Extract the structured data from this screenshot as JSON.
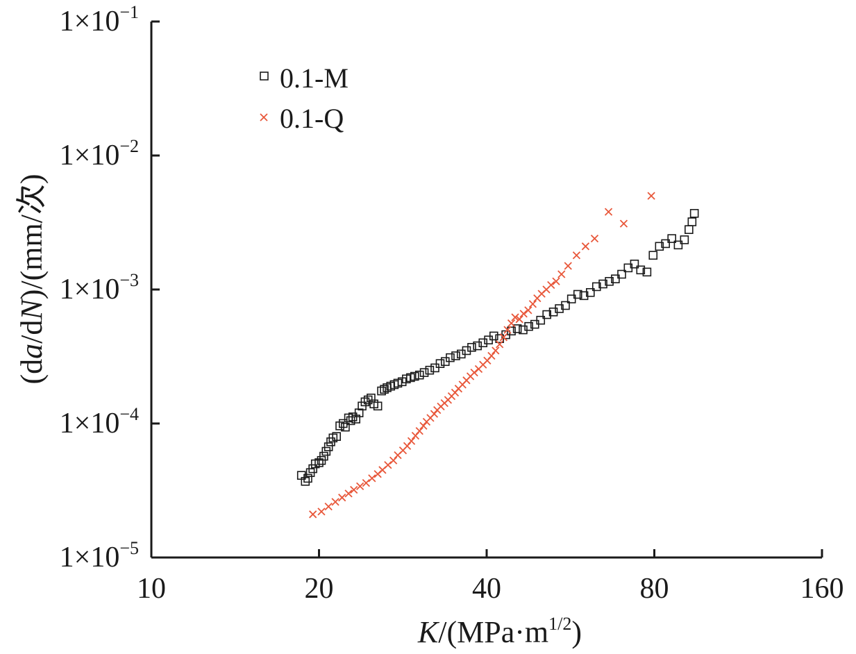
{
  "chart_data": {
    "type": "scatter",
    "title": "",
    "xscale": "log",
    "yscale": "log",
    "xlim": [
      10,
      160
    ],
    "ylim": [
      1e-05,
      0.1
    ],
    "x_ticks": [
      10,
      20,
      40,
      80,
      160
    ],
    "x_tick_labels": [
      "10",
      "20",
      "40",
      "80",
      "160"
    ],
    "y_ticks": [
      1e-05,
      0.0001,
      0.001,
      0.01,
      0.1
    ],
    "y_tick_labels": [
      {
        "base": "1×10",
        "exp": "−5"
      },
      {
        "base": "1×10",
        "exp": "−4"
      },
      {
        "base": "1×10",
        "exp": "−3"
      },
      {
        "base": "1×10",
        "exp": "−2"
      },
      {
        "base": "1×10",
        "exp": "−1"
      }
    ],
    "xlabel": {
      "var": "K",
      "unit_open": "/(MPa·m",
      "unit_sup": "1/2",
      "unit_close": ")"
    },
    "ylabel": {
      "p1": "(d",
      "a": "a",
      "p2": "/d",
      "N": "N",
      "p3": ")/(mm/次)"
    },
    "legend_position": "top-left",
    "series": [
      {
        "name": "0.1-M",
        "marker": "square",
        "color": "#1a1a1a",
        "points": [
          [
            18.6,
            4.1e-05
          ],
          [
            18.9,
            3.7e-05
          ],
          [
            19.1,
            3.9e-05
          ],
          [
            19.3,
            4.3e-05
          ],
          [
            19.5,
            4.6e-05
          ],
          [
            19.7,
            5e-05
          ],
          [
            20.0,
            5.1e-05
          ],
          [
            20.2,
            5.3e-05
          ],
          [
            20.4,
            5.7e-05
          ],
          [
            20.6,
            6.2e-05
          ],
          [
            20.8,
            6.7e-05
          ],
          [
            21.0,
            7.3e-05
          ],
          [
            21.2,
            7.8e-05
          ],
          [
            21.5,
            8e-05
          ],
          [
            21.8,
            9.6e-05
          ],
          [
            22.1,
            0.0001
          ],
          [
            22.3,
            9.4e-05
          ],
          [
            22.6,
            0.00011
          ],
          [
            22.8,
            0.000105
          ],
          [
            23.0,
            0.000112
          ],
          [
            23.3,
            0.000108
          ],
          [
            23.6,
            0.00012
          ],
          [
            23.9,
            0.000135
          ],
          [
            24.2,
            0.000145
          ],
          [
            24.5,
            0.00015
          ],
          [
            24.8,
            0.000155
          ],
          [
            25.1,
            0.00014
          ],
          [
            25.5,
            0.000135
          ],
          [
            25.9,
            0.000175
          ],
          [
            26.2,
            0.00018
          ],
          [
            26.5,
            0.000185
          ],
          [
            26.9,
            0.00019
          ],
          [
            27.3,
            0.000195
          ],
          [
            27.7,
            0.0002
          ],
          [
            28.2,
            0.000205
          ],
          [
            28.7,
            0.000215
          ],
          [
            29.2,
            0.00022
          ],
          [
            29.7,
            0.000225
          ],
          [
            30.3,
            0.00023
          ],
          [
            30.9,
            0.00024
          ],
          [
            31.6,
            0.00025
          ],
          [
            32.3,
            0.00026
          ],
          [
            33.0,
            0.00028
          ],
          [
            33.7,
            0.00029
          ],
          [
            34.4,
            0.00031
          ],
          [
            35.2,
            0.00032
          ],
          [
            36.0,
            0.00033
          ],
          [
            36.8,
            0.00035
          ],
          [
            37.6,
            0.00037
          ],
          [
            38.5,
            0.00038
          ],
          [
            39.4,
            0.0004
          ],
          [
            40.3,
            0.00042
          ],
          [
            41.2,
            0.00045
          ],
          [
            42.2,
            0.00043
          ],
          [
            43.3,
            0.00046
          ],
          [
            44.3,
            0.00049
          ],
          [
            45.4,
            0.00051
          ],
          [
            46.5,
            0.0005
          ],
          [
            47.6,
            0.00053
          ],
          [
            48.8,
            0.00055
          ],
          [
            50.0,
            0.00059
          ],
          [
            51.3,
            0.00065
          ],
          [
            52.7,
            0.00068
          ],
          [
            54.0,
            0.00072
          ],
          [
            55.4,
            0.00076
          ],
          [
            56.8,
            0.00085
          ],
          [
            58.3,
            0.00092
          ],
          [
            59.8,
            0.0009
          ],
          [
            61.4,
            0.00095
          ],
          [
            63.0,
            0.00105
          ],
          [
            64.7,
            0.0011
          ],
          [
            66.4,
            0.00115
          ],
          [
            68.1,
            0.0012
          ],
          [
            69.9,
            0.0013
          ],
          [
            71.8,
            0.00145
          ],
          [
            73.7,
            0.00155
          ],
          [
            75.6,
            0.0014
          ],
          [
            77.6,
            0.00135
          ],
          [
            79.6,
            0.0018
          ],
          [
            81.7,
            0.0021
          ],
          [
            83.8,
            0.0022
          ],
          [
            86.0,
            0.0024
          ],
          [
            88.3,
            0.00215
          ],
          [
            90.6,
            0.00235
          ],
          [
            92.3,
            0.0028
          ],
          [
            93.5,
            0.0032
          ],
          [
            94.4,
            0.0037
          ]
        ]
      },
      {
        "name": "0.1-Q",
        "marker": "x",
        "color": "#e8573a",
        "points": [
          [
            19.5,
            2.1e-05
          ],
          [
            20.2,
            2.2e-05
          ],
          [
            20.8,
            2.4e-05
          ],
          [
            21.4,
            2.6e-05
          ],
          [
            22.0,
            2.8e-05
          ],
          [
            22.6,
            3e-05
          ],
          [
            23.1,
            3.2e-05
          ],
          [
            23.7,
            3.4e-05
          ],
          [
            24.3,
            3.6e-05
          ],
          [
            24.9,
            3.9e-05
          ],
          [
            25.5,
            4.2e-05
          ],
          [
            26.0,
            4.5e-05
          ],
          [
            26.6,
            4.9e-05
          ],
          [
            27.2,
            5.3e-05
          ],
          [
            27.7,
            5.8e-05
          ],
          [
            28.3,
            6.3e-05
          ],
          [
            28.8,
            6.8e-05
          ],
          [
            29.3,
            7.4e-05
          ],
          [
            29.8,
            8.1e-05
          ],
          [
            30.3,
            8.8e-05
          ],
          [
            30.8,
            9.6e-05
          ],
          [
            31.2,
            0.000103
          ],
          [
            31.7,
            0.00011
          ],
          [
            32.2,
            0.000118
          ],
          [
            32.6,
            0.000126
          ],
          [
            33.1,
            0.000134
          ],
          [
            33.6,
            0.000142
          ],
          [
            34.1,
            0.00015
          ],
          [
            34.6,
            0.00016
          ],
          [
            35.1,
            0.00017
          ],
          [
            35.6,
            0.000182
          ],
          [
            36.2,
            0.000195
          ],
          [
            36.8,
            0.00021
          ],
          [
            37.4,
            0.000225
          ],
          [
            38.0,
            0.00024
          ],
          [
            38.7,
            0.000255
          ],
          [
            39.4,
            0.000275
          ],
          [
            40.1,
            0.000295
          ],
          [
            40.8,
            0.00032
          ],
          [
            41.5,
            0.00035
          ],
          [
            42.2,
            0.00039
          ],
          [
            42.9,
            0.00044
          ],
          [
            43.6,
            0.0005
          ],
          [
            44.3,
            0.00056
          ],
          [
            45.0,
            0.00062
          ],
          [
            45.8,
            0.0006
          ],
          [
            46.6,
            0.00066
          ],
          [
            47.5,
            0.0007
          ],
          [
            48.4,
            0.00078
          ],
          [
            49.3,
            0.00086
          ],
          [
            50.2,
            0.00093
          ],
          [
            51.2,
            0.001
          ],
          [
            52.2,
            0.00108
          ],
          [
            53.3,
            0.00115
          ],
          [
            54.5,
            0.0013
          ],
          [
            56.0,
            0.0015
          ],
          [
            58.0,
            0.0018
          ],
          [
            60.2,
            0.0021
          ],
          [
            62.5,
            0.0024
          ],
          [
            66.2,
            0.0038
          ],
          [
            70.5,
            0.0031
          ],
          [
            79.0,
            0.005
          ]
        ]
      }
    ]
  }
}
